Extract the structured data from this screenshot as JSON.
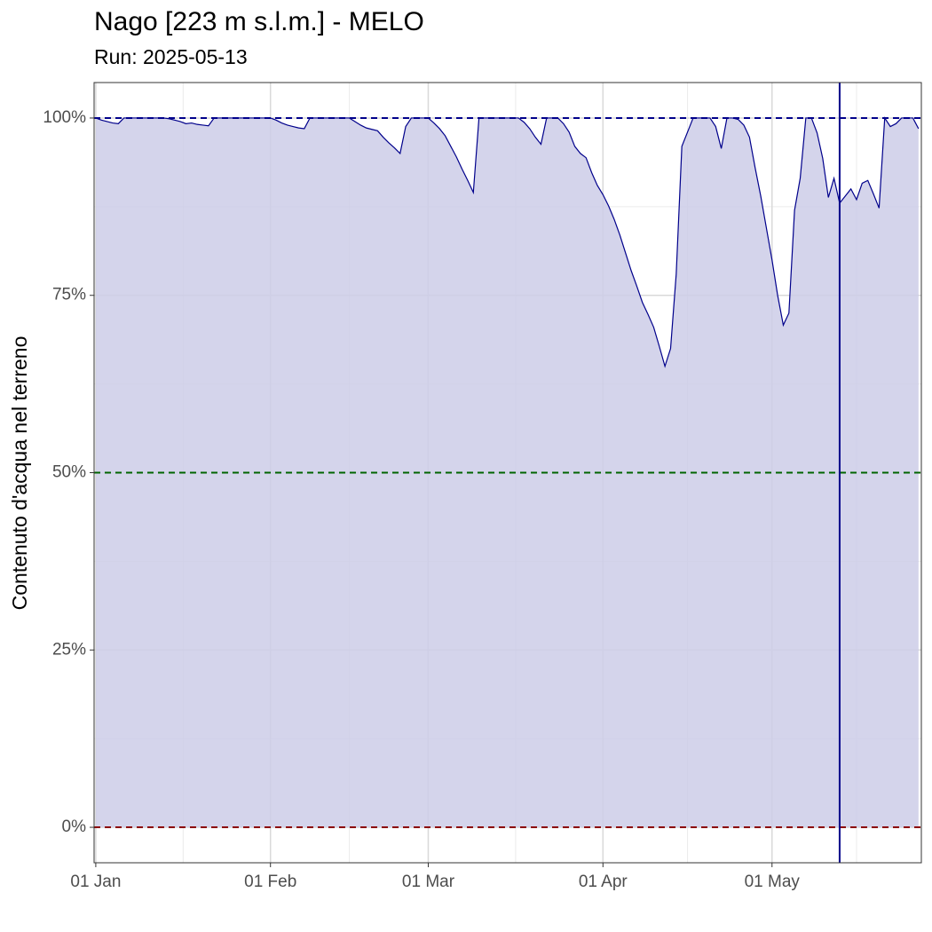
{
  "chart_data": {
    "type": "area",
    "title": "Nago [223 m s.l.m.] - MELO",
    "subtitle": "Run: 2025-05-13",
    "ylabel": "Contenuto d'acqua nel terreno",
    "categories": [
      "01 Jan",
      null,
      null,
      null,
      null,
      null,
      null,
      null,
      null,
      null,
      null,
      null,
      null,
      null,
      null,
      null,
      null,
      null,
      null,
      null,
      null,
      null,
      null,
      null,
      null,
      null,
      null,
      null,
      null,
      null,
      null,
      "01 Feb",
      null,
      null,
      null,
      null,
      null,
      null,
      null,
      null,
      null,
      null,
      null,
      null,
      null,
      null,
      null,
      null,
      null,
      null,
      null,
      null,
      null,
      null,
      null,
      null,
      null,
      null,
      null,
      "01 Mar",
      null,
      null,
      null,
      null,
      null,
      null,
      null,
      null,
      null,
      null,
      null,
      null,
      null,
      null,
      null,
      null,
      null,
      null,
      null,
      null,
      null,
      null,
      null,
      null,
      null,
      null,
      null,
      null,
      null,
      null,
      "01 Apr",
      null,
      null,
      null,
      null,
      null,
      null,
      null,
      null,
      null,
      null,
      null,
      null,
      null,
      null,
      null,
      null,
      null,
      null,
      null,
      null,
      null,
      null,
      null,
      null,
      null,
      null,
      null,
      null,
      null,
      "01 May",
      null,
      null,
      null,
      null,
      null,
      null,
      null,
      null,
      null,
      null,
      null,
      null,
      null,
      null,
      null,
      null,
      null,
      null,
      null,
      null,
      null,
      null,
      null,
      null,
      null,
      null
    ],
    "values": [
      100,
      99.7,
      99.5,
      99.3,
      99.2,
      100,
      100,
      100,
      100,
      100,
      100,
      100,
      100,
      99.9,
      99.7,
      99.5,
      99.2,
      99.3,
      99.1,
      99,
      98.9,
      100,
      100,
      100,
      100,
      100,
      100,
      100,
      100,
      100,
      100,
      100,
      99.7,
      99.3,
      99,
      98.8,
      98.6,
      98.5,
      100,
      100,
      100,
      100,
      100,
      100,
      100,
      100,
      99.5,
      99,
      98.6,
      98.4,
      98.2,
      97.3,
      96.5,
      95.8,
      95,
      98.8,
      100,
      100,
      100,
      100,
      99.3,
      98.5,
      97.5,
      96,
      94.5,
      92.8,
      91.2,
      89.5,
      100,
      100,
      100,
      100,
      100,
      100,
      100,
      100,
      99.4,
      98.5,
      97.3,
      96.3,
      100,
      100,
      100,
      99.2,
      98,
      96,
      95,
      94.4,
      92.3,
      90.5,
      89.2,
      87.6,
      85.7,
      83.5,
      81,
      78.5,
      76.3,
      74,
      72.3,
      70.5,
      67.8,
      65,
      67.5,
      78,
      96,
      98,
      100,
      100,
      100,
      100,
      98.8,
      95.7,
      100,
      100,
      99.8,
      99,
      97.3,
      93,
      89,
      84.5,
      80,
      75,
      70.8,
      72.5,
      87,
      91.5,
      100,
      100,
      97.9,
      94.3,
      88.8,
      91.5,
      88,
      89,
      90,
      88.5,
      90.8,
      91.2,
      89.3,
      87.3,
      100,
      98.8,
      99.2,
      100,
      100,
      100,
      98.5
    ],
    "color": "#00008b",
    "fill": "#cccce8",
    "xlim": [
      -0.3,
      146.5
    ],
    "ylim": [
      -5,
      105
    ],
    "yticks": [
      {
        "value": 0,
        "label": "0%"
      },
      {
        "value": 25,
        "label": "25%"
      },
      {
        "value": 50,
        "label": "50%"
      },
      {
        "value": 75,
        "label": "75%"
      },
      {
        "value": 100,
        "label": "100%"
      }
    ],
    "hlines": [
      {
        "value": 100,
        "color": "#00008b"
      },
      {
        "value": 50,
        "color": "#006400"
      },
      {
        "value": 0,
        "color": "#8b0000"
      }
    ],
    "vline": 132,
    "vline_color": "#00008b",
    "grid": true
  }
}
